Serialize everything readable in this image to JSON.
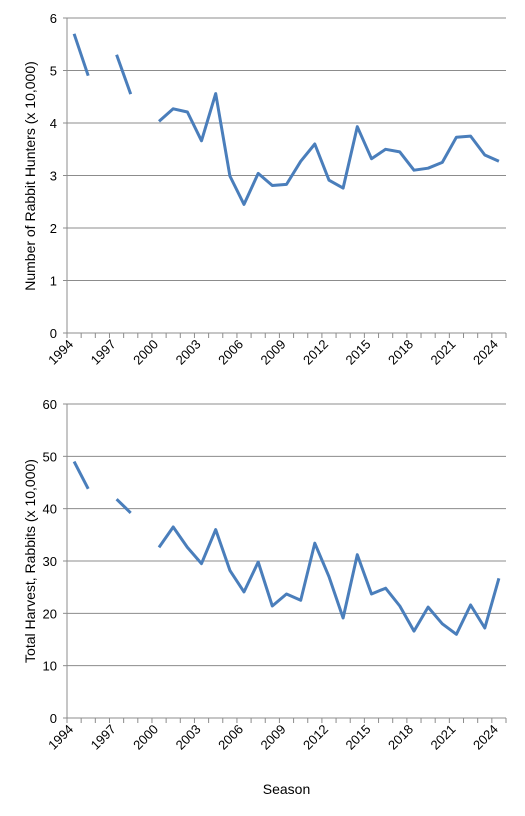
{
  "chart_data": [
    {
      "type": "line",
      "title": "",
      "xlabel": "",
      "ylabel": "Number of Rabbit Hunters (x 10,000)",
      "ylim": [
        0,
        6
      ],
      "yticks": [
        0,
        1,
        2,
        3,
        4,
        5,
        6
      ],
      "xlim": [
        1994,
        2025
      ],
      "xtick_labels": [
        "1994",
        "1997",
        "2000",
        "2003",
        "2006",
        "2009",
        "2012",
        "2015",
        "2018",
        "2021",
        "2024"
      ],
      "grid": true,
      "legend": "none",
      "color": "#4a7ebb",
      "series": [
        {
          "x": [
            1994,
            1995,
            1996,
            1997,
            1998,
            1999,
            2000,
            2001,
            2002,
            2003,
            2004,
            2005,
            2006,
            2007,
            2008,
            2009,
            2010,
            2011,
            2012,
            2013,
            2014,
            2015,
            2016,
            2017,
            2018,
            2019,
            2020,
            2021,
            2022,
            2023,
            2024
          ],
          "values": [
            5.7,
            4.9,
            null,
            5.3,
            4.55,
            null,
            4.03,
            4.27,
            4.21,
            3.66,
            4.56,
            2.99,
            2.45,
            3.04,
            2.81,
            2.83,
            3.27,
            3.6,
            2.91,
            2.76,
            3.93,
            3.32,
            3.5,
            3.45,
            3.1,
            3.14,
            3.25,
            3.73,
            3.75,
            3.39,
            3.27
          ]
        }
      ]
    },
    {
      "type": "line",
      "title": "",
      "xlabel": "Season",
      "ylabel": "Total Harvest, Rabbits (x 10,000)",
      "ylim": [
        0,
        60
      ],
      "yticks": [
        0,
        10,
        20,
        30,
        40,
        50,
        60
      ],
      "xlim": [
        1994,
        2025
      ],
      "xtick_labels": [
        "1994",
        "1997",
        "2000",
        "2003",
        "2006",
        "2009",
        "2012",
        "2015",
        "2018",
        "2021",
        "2024"
      ],
      "grid": true,
      "legend": "none",
      "color": "#4a7ebb",
      "series": [
        {
          "x": [
            1994,
            1995,
            1996,
            1997,
            1998,
            1999,
            2000,
            2001,
            2002,
            2003,
            2004,
            2005,
            2006,
            2007,
            2008,
            2009,
            2010,
            2011,
            2012,
            2013,
            2014,
            2015,
            2016,
            2017,
            2018,
            2019,
            2020,
            2021,
            2022,
            2023,
            2024
          ],
          "values": [
            49.0,
            43.8,
            null,
            41.8,
            39.2,
            null,
            32.6,
            36.5,
            32.6,
            29.5,
            36.0,
            28.2,
            24.1,
            29.8,
            21.4,
            23.7,
            22.5,
            33.4,
            27.0,
            19.1,
            31.2,
            23.7,
            24.8,
            21.4,
            16.6,
            21.2,
            18.0,
            16.0,
            21.6,
            17.2,
            26.7
          ]
        }
      ]
    }
  ]
}
